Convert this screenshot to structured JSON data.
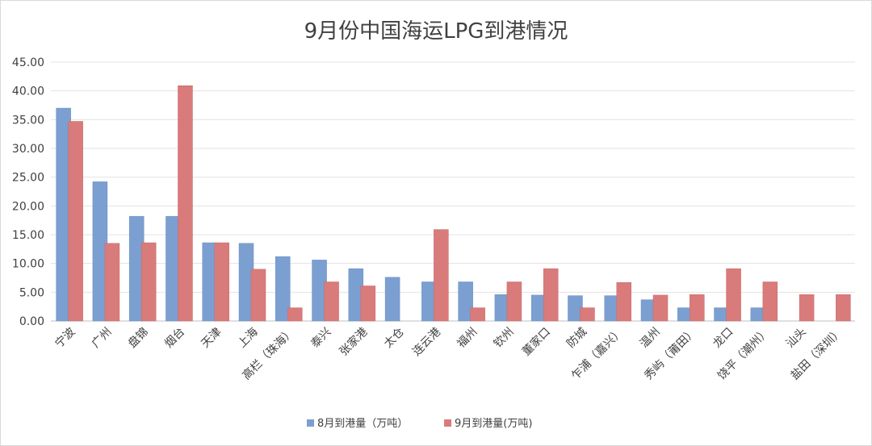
{
  "chart_data": {
    "type": "bar",
    "title": "9月份中国海运LPG到港情况",
    "xlabel": "",
    "ylabel": "",
    "ylim": [
      0,
      45
    ],
    "yticks": [
      "0.00",
      "5.00",
      "10.00",
      "15.00",
      "20.00",
      "25.00",
      "30.00",
      "35.00",
      "40.00",
      "45.00"
    ],
    "grid": true,
    "legend_position": "bottom",
    "categories": [
      "宁波",
      "广州",
      "盘锦",
      "烟台",
      "天津",
      "上海",
      "高栏（珠海）",
      "泰兴",
      "张家港",
      "太仓",
      "连云港",
      "福州",
      "钦州",
      "董家口",
      "防城",
      "乍浦（嘉兴）",
      "温州",
      "秀屿（莆田）",
      "龙口",
      "饶平（潮州）",
      "汕头",
      "盐田（深圳）"
    ],
    "series": [
      {
        "name": "8月到港量（万吨）",
        "color": "#7b9fd0",
        "values": [
          37.0,
          24.2,
          18.2,
          18.2,
          13.6,
          13.5,
          11.2,
          10.6,
          9.1,
          7.6,
          6.8,
          6.8,
          4.6,
          4.5,
          4.4,
          4.4,
          3.7,
          2.3,
          2.3,
          2.3,
          0,
          0
        ]
      },
      {
        "name": "9月到港量(万吨)",
        "color": "#d97b7b",
        "values": [
          34.7,
          13.5,
          13.6,
          40.9,
          13.6,
          9.0,
          2.3,
          6.8,
          6.1,
          0,
          15.9,
          2.3,
          6.8,
          9.1,
          2.3,
          6.7,
          4.5,
          4.6,
          9.1,
          6.8,
          4.6,
          4.6
        ]
      }
    ]
  }
}
